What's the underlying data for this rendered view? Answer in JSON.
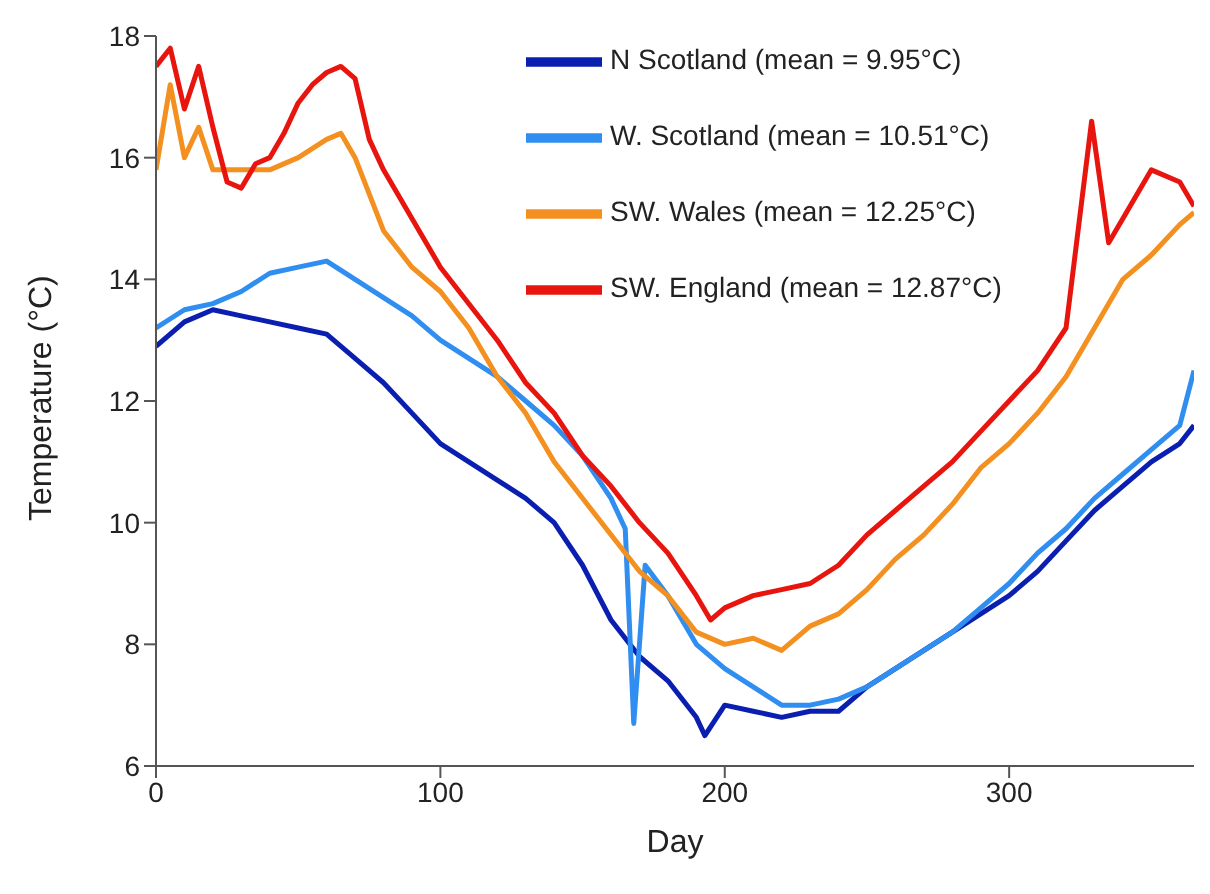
{
  "chart_data": {
    "type": "line",
    "xlabel": "Day",
    "ylabel": "Temperature (°C)",
    "xlim": [
      0,
      365
    ],
    "xticks": [
      0,
      100,
      200,
      300
    ],
    "ylim": [
      6,
      18
    ],
    "yticks": [
      6,
      8,
      10,
      12,
      14,
      16,
      18
    ],
    "grid": false,
    "legend": "top right",
    "marker": "none",
    "line_style": "solid",
    "series": [
      {
        "name": "N Scotland (mean = 9.95°C)",
        "color": "#0a1fb0",
        "x": [
          0,
          10,
          20,
          30,
          40,
          50,
          60,
          70,
          80,
          90,
          100,
          110,
          120,
          130,
          140,
          150,
          160,
          170,
          180,
          190,
          193,
          200,
          210,
          220,
          230,
          240,
          250,
          260,
          270,
          280,
          290,
          300,
          310,
          320,
          330,
          340,
          350,
          360,
          365
        ],
        "values": [
          12.9,
          13.3,
          13.5,
          13.4,
          13.3,
          13.2,
          13.1,
          12.7,
          12.3,
          11.8,
          11.3,
          11.0,
          10.7,
          10.4,
          10.0,
          9.3,
          8.4,
          7.8,
          7.4,
          6.8,
          6.5,
          7.0,
          6.9,
          6.8,
          6.9,
          6.9,
          7.3,
          7.6,
          7.9,
          8.2,
          8.5,
          8.8,
          9.2,
          9.7,
          10.2,
          10.6,
          11.0,
          11.3,
          11.6
        ]
      },
      {
        "name": "W. Scotland (mean = 10.51°C)",
        "color": "#2f8ef0",
        "x": [
          0,
          10,
          20,
          30,
          40,
          50,
          60,
          70,
          80,
          90,
          100,
          110,
          120,
          130,
          140,
          150,
          160,
          165,
          168,
          172,
          180,
          190,
          200,
          210,
          220,
          230,
          240,
          250,
          260,
          270,
          280,
          290,
          300,
          310,
          320,
          330,
          340,
          350,
          360,
          365
        ],
        "values": [
          13.2,
          13.5,
          13.6,
          13.8,
          14.1,
          14.2,
          14.3,
          14.0,
          13.7,
          13.4,
          13.0,
          12.7,
          12.4,
          12.0,
          11.6,
          11.1,
          10.4,
          9.9,
          6.7,
          9.3,
          8.8,
          8.0,
          7.6,
          7.3,
          7.0,
          7.0,
          7.1,
          7.3,
          7.6,
          7.9,
          8.2,
          8.6,
          9.0,
          9.5,
          9.9,
          10.4,
          10.8,
          11.2,
          11.6,
          12.5
        ]
      },
      {
        "name": "SW. Wales (mean = 12.25°C)",
        "color": "#f39020",
        "x": [
          0,
          5,
          10,
          15,
          20,
          30,
          40,
          50,
          60,
          65,
          70,
          80,
          90,
          100,
          110,
          120,
          130,
          140,
          150,
          160,
          170,
          180,
          190,
          200,
          210,
          220,
          230,
          240,
          250,
          260,
          270,
          280,
          290,
          300,
          310,
          320,
          330,
          340,
          350,
          360,
          365
        ],
        "values": [
          15.8,
          17.2,
          16.0,
          16.5,
          15.8,
          15.8,
          15.8,
          16.0,
          16.3,
          16.4,
          16.0,
          14.8,
          14.2,
          13.8,
          13.2,
          12.4,
          11.8,
          11.0,
          10.4,
          9.8,
          9.2,
          8.8,
          8.2,
          8.0,
          8.1,
          7.9,
          8.3,
          8.5,
          8.9,
          9.4,
          9.8,
          10.3,
          10.9,
          11.3,
          11.8,
          12.4,
          13.2,
          14.0,
          14.4,
          14.9,
          15.1
        ]
      },
      {
        "name": "SW. England (mean = 12.87°C)",
        "color": "#e8150f",
        "x": [
          0,
          5,
          10,
          15,
          20,
          25,
          30,
          35,
          40,
          45,
          50,
          55,
          60,
          65,
          70,
          75,
          80,
          90,
          100,
          110,
          120,
          130,
          140,
          150,
          160,
          170,
          180,
          190,
          195,
          200,
          210,
          220,
          230,
          240,
          250,
          260,
          270,
          280,
          290,
          300,
          310,
          320,
          329,
          335,
          340,
          350,
          360,
          365
        ],
        "values": [
          17.5,
          17.8,
          16.8,
          17.5,
          16.5,
          15.6,
          15.5,
          15.9,
          16.0,
          16.4,
          16.9,
          17.2,
          17.4,
          17.5,
          17.3,
          16.3,
          15.8,
          15.0,
          14.2,
          13.6,
          13.0,
          12.3,
          11.8,
          11.1,
          10.6,
          10.0,
          9.5,
          8.8,
          8.4,
          8.6,
          8.8,
          8.9,
          9.0,
          9.3,
          9.8,
          10.2,
          10.6,
          11.0,
          11.5,
          12.0,
          12.5,
          13.2,
          16.6,
          14.6,
          15.0,
          15.8,
          15.6,
          15.2
        ]
      }
    ]
  }
}
